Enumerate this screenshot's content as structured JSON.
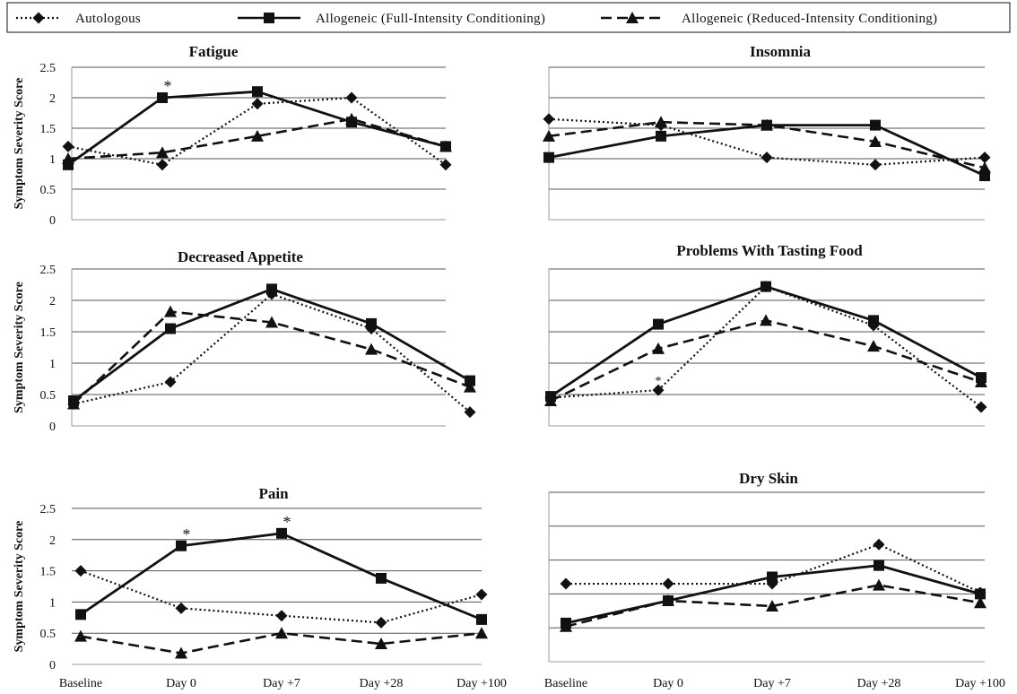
{
  "legend": [
    {
      "label": "Autologous",
      "style": "dotted",
      "marker": "diamond"
    },
    {
      "label": "Allogeneic (Full-Intensity Conditioning)",
      "style": "solid",
      "marker": "square"
    },
    {
      "label": "Allogeneic (Reduced-Intensity Conditioning)",
      "style": "dashed",
      "marker": "triangle"
    }
  ],
  "y_axis_label": "Symptom Severity Score",
  "colors": {
    "line": "#111111",
    "grid": "#555555",
    "axis": "#999999"
  },
  "chart_data": [
    {
      "type": "line",
      "title": "Fatigue",
      "categories": [
        "Baseline",
        "Day 0",
        "Day +7",
        "Day +28",
        "Day +100"
      ],
      "ylim": [
        0,
        2.5
      ],
      "yticks": [
        "0",
        "0.5",
        "1",
        "1.5",
        "2",
        "2.5"
      ],
      "ylabel": "Symptom Severity Score",
      "show_ytick_labels": true,
      "show_xtick_labels": false,
      "series": [
        {
          "name": "Autologous",
          "values": [
            1.2,
            0.9,
            1.9,
            2.0,
            0.9
          ]
        },
        {
          "name": "Allogeneic (Full-Intensity Conditioning)",
          "values": [
            0.9,
            2.0,
            2.1,
            1.6,
            1.2
          ]
        },
        {
          "name": "Allogeneic (Reduced-Intensity Conditioning)",
          "values": [
            1.0,
            1.1,
            1.37,
            1.65,
            1.2
          ]
        }
      ],
      "annotations": [
        {
          "text": "*",
          "x_index": 1,
          "y": 2.0
        }
      ]
    },
    {
      "type": "line",
      "title": "Insomnia",
      "categories": [
        "Baseline",
        "Day 0",
        "Day +7",
        "Day +28",
        "Day +100"
      ],
      "ylim": [
        0,
        2.5
      ],
      "yticks": [],
      "ylabel": "",
      "show_ytick_labels": false,
      "show_xtick_labels": false,
      "series": [
        {
          "name": "Autologous",
          "values": [
            1.65,
            1.55,
            1.02,
            0.9,
            1.02
          ]
        },
        {
          "name": "Allogeneic (Full-Intensity Conditioning)",
          "values": [
            1.02,
            1.37,
            1.55,
            1.55,
            0.72
          ]
        },
        {
          "name": "Allogeneic (Reduced-Intensity Conditioning)",
          "values": [
            1.37,
            1.6,
            1.55,
            1.28,
            0.85
          ]
        }
      ],
      "annotations": []
    },
    {
      "type": "line",
      "title": "Decreased Appetite",
      "categories": [
        "Baseline",
        "Day 0",
        "Day +7",
        "Day +28",
        "Day +100"
      ],
      "ylim": [
        0,
        2.5
      ],
      "yticks": [
        "0",
        "0.5",
        "1",
        "1.5",
        "2",
        "2.5"
      ],
      "ylabel": "Symptom Severity Score",
      "show_ytick_labels": true,
      "show_xtick_labels": false,
      "series": [
        {
          "name": "Autologous",
          "values": [
            0.35,
            0.7,
            2.1,
            1.55,
            0.22
          ]
        },
        {
          "name": "Allogeneic (Full-Intensity Conditioning)",
          "values": [
            0.4,
            1.55,
            2.18,
            1.63,
            0.72
          ]
        },
        {
          "name": "Allogeneic (Reduced-Intensity Conditioning)",
          "values": [
            0.35,
            1.82,
            1.65,
            1.22,
            0.62
          ]
        }
      ],
      "annotations": []
    },
    {
      "type": "line",
      "title": "Problems With Tasting  Food",
      "categories": [
        "Baseline",
        "Day 0",
        "Day +7",
        "Day +28",
        "Day +100"
      ],
      "ylim": [
        0,
        2.5
      ],
      "yticks": [],
      "ylabel": "",
      "show_ytick_labels": false,
      "show_xtick_labels": false,
      "series": [
        {
          "name": "Autologous",
          "values": [
            0.45,
            0.57,
            2.22,
            1.6,
            0.3
          ]
        },
        {
          "name": "Allogeneic (Full-Intensity Conditioning)",
          "values": [
            0.47,
            1.62,
            2.22,
            1.68,
            0.77
          ]
        },
        {
          "name": "Allogeneic (Reduced-Intensity Conditioning)",
          "values": [
            0.4,
            1.23,
            1.68,
            1.27,
            0.7
          ]
        }
      ],
      "annotations": [
        {
          "text": "*",
          "x_index": 1,
          "y": 0.57,
          "small": true
        }
      ]
    },
    {
      "type": "line",
      "title": "Pain",
      "categories": [
        "Baseline",
        "Day 0",
        "Day +7",
        "Day +28",
        "Day +100"
      ],
      "ylim": [
        0,
        2.5
      ],
      "yticks": [
        "0",
        "0.5",
        "1",
        "1.5",
        "2",
        "2.5"
      ],
      "ylabel": "Symptom Severity Score",
      "show_ytick_labels": true,
      "show_xtick_labels": true,
      "series": [
        {
          "name": "Autologous",
          "values": [
            1.5,
            0.9,
            0.78,
            0.67,
            1.12
          ]
        },
        {
          "name": "Allogeneic (Full-Intensity Conditioning)",
          "values": [
            0.8,
            1.9,
            2.1,
            1.38,
            0.72
          ]
        },
        {
          "name": "Allogeneic (Reduced-Intensity Conditioning)",
          "values": [
            0.45,
            0.18,
            0.5,
            0.33,
            0.5
          ]
        }
      ],
      "annotations": [
        {
          "text": "*",
          "x_index": 1,
          "y": 1.9
        },
        {
          "text": "*",
          "x_index": 2,
          "y": 2.1
        }
      ]
    },
    {
      "type": "line",
      "title": "Dry Skin",
      "categories": [
        "Baseline",
        "Day 0",
        "Day +7",
        "Day +28",
        "Day +100"
      ],
      "ylim": [
        0,
        2.5
      ],
      "yticks": [],
      "ylabel": "",
      "show_ytick_labels": false,
      "show_xtick_labels": true,
      "series": [
        {
          "name": "Autologous",
          "values": [
            1.15,
            1.15,
            1.15,
            1.73,
            1.02
          ]
        },
        {
          "name": "Allogeneic (Full-Intensity Conditioning)",
          "values": [
            0.57,
            0.9,
            1.25,
            1.42,
            1.0
          ]
        },
        {
          "name": "Allogeneic (Reduced-Intensity Conditioning)",
          "values": [
            0.52,
            0.9,
            0.82,
            1.13,
            0.87
          ]
        }
      ],
      "annotations": []
    }
  ]
}
